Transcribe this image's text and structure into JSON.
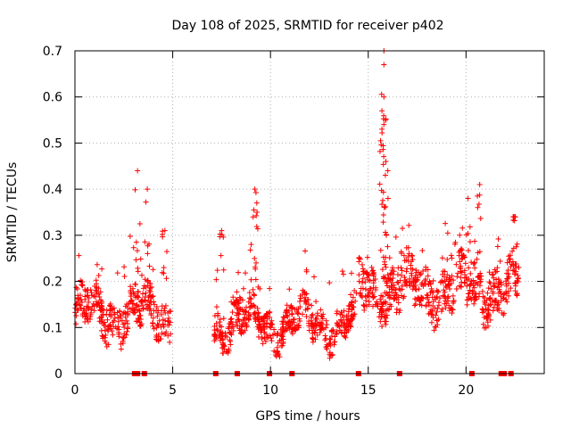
{
  "chart_data": {
    "type": "scatter",
    "title": "Day 108 of 2025, SRMTID for receiver p402",
    "xlabel": "GPS time / hours",
    "ylabel": "SRMTID / TECUs",
    "xlim": [
      0,
      24
    ],
    "ylim": [
      0,
      0.7
    ],
    "x_ticks": [
      0,
      5,
      10,
      15,
      20
    ],
    "y_ticks": [
      0,
      0.1,
      0.2,
      0.3,
      0.4,
      0.5,
      0.6,
      0.7
    ],
    "x_tick_labels": [
      "0",
      "5",
      "10",
      "15",
      "20"
    ],
    "y_tick_labels": [
      "0",
      "0.1",
      "0.2",
      "0.3",
      "0.4",
      "0.5",
      "0.6",
      "0.7"
    ],
    "grid": true,
    "series_color": "#ff0000",
    "marker": "plus",
    "segments": [
      {
        "start": 0.0,
        "end": 4.9,
        "base": 0.12,
        "spread": 0.08
      },
      {
        "start": 7.1,
        "end": 14.4,
        "base": 0.1,
        "spread": 0.06
      },
      {
        "start": 14.5,
        "end": 22.7,
        "base": 0.17,
        "spread": 0.09
      }
    ],
    "peaks": [
      {
        "x": 3.2,
        "y": 0.44
      },
      {
        "x": 3.7,
        "y": 0.4
      },
      {
        "x": 4.6,
        "y": 0.31
      },
      {
        "x": 9.2,
        "y": 0.4
      },
      {
        "x": 9.3,
        "y": 0.37
      },
      {
        "x": 7.5,
        "y": 0.31
      },
      {
        "x": 15.8,
        "y": 0.7
      },
      {
        "x": 15.8,
        "y": 0.67
      },
      {
        "x": 15.8,
        "y": 0.6
      },
      {
        "x": 15.7,
        "y": 0.57
      },
      {
        "x": 15.7,
        "y": 0.53
      },
      {
        "x": 15.9,
        "y": 0.46
      },
      {
        "x": 16.0,
        "y": 0.44
      },
      {
        "x": 20.7,
        "y": 0.41
      },
      {
        "x": 20.1,
        "y": 0.38
      },
      {
        "x": 22.5,
        "y": 0.34
      }
    ],
    "zero_markers": [
      3.05,
      3.2,
      3.55,
      7.2,
      8.3,
      9.95,
      11.1,
      14.5,
      16.6,
      20.3,
      21.8,
      21.95,
      22.3
    ]
  }
}
